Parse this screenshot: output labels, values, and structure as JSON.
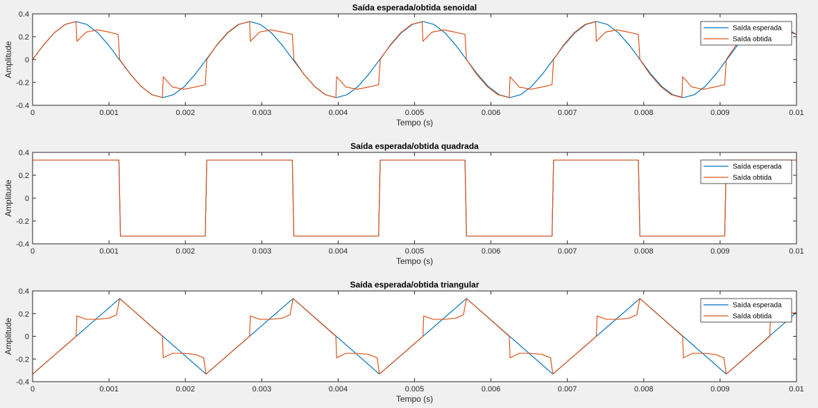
{
  "chart_data": [
    {
      "type": "line",
      "title": "Saída esperada/obtida senoidal",
      "xlabel": "Tempo (s)",
      "ylabel": "Amplitude",
      "xlim": [
        0,
        0.01
      ],
      "ylim": [
        -0.4,
        0.4
      ],
      "xticks": [
        0,
        0.001,
        0.002,
        0.003,
        0.004,
        0.005,
        0.006,
        0.007,
        0.008,
        0.009,
        0.01
      ],
      "yticks": [
        -0.4,
        -0.2,
        0,
        0.2,
        0.4
      ],
      "legend": "top-right",
      "series": [
        {
          "name": "Saída esperada",
          "color": "#0072BD",
          "x": [
            0,
            0.000142,
            0.000284,
            0.000426,
            0.000568,
            0.00071,
            0.000852,
            0.000994,
            0.001136,
            0.001278,
            0.00142,
            0.001562,
            0.001704,
            0.001846,
            0.001988,
            0.00213,
            0.002272,
            0.002414,
            0.002556,
            0.002698,
            0.00284,
            0.002982,
            0.003124,
            0.003266,
            0.003408,
            0.00355,
            0.003692,
            0.003834,
            0.003976,
            0.004118,
            0.00426,
            0.004402,
            0.004544,
            0.004686,
            0.004828,
            0.00497,
            0.005112,
            0.005254,
            0.005396,
            0.005538,
            0.00568,
            0.005822,
            0.005964,
            0.006106,
            0.006248,
            0.00639,
            0.006532,
            0.006674,
            0.006816,
            0.006958,
            0.0071,
            0.007242,
            0.007384,
            0.007526,
            0.007668,
            0.00781,
            0.007952,
            0.008094,
            0.008236,
            0.008378,
            0.00852,
            0.008662,
            0.008804,
            0.008946,
            0.009088,
            0.00923,
            0.009372,
            0.009514,
            0.009656,
            0.009798,
            0.00994,
            0.01
          ],
          "y": [
            0,
            0.127,
            0.235,
            0.307,
            0.333,
            0.307,
            0.235,
            0.127,
            0,
            -0.127,
            -0.235,
            -0.307,
            -0.333,
            -0.307,
            -0.235,
            -0.127,
            0,
            0.127,
            0.235,
            0.307,
            0.333,
            0.307,
            0.235,
            0.127,
            0,
            -0.127,
            -0.235,
            -0.307,
            -0.333,
            -0.307,
            -0.235,
            -0.127,
            0,
            0.127,
            0.235,
            0.307,
            0.333,
            0.307,
            0.235,
            0.127,
            0,
            -0.127,
            -0.235,
            -0.307,
            -0.333,
            -0.307,
            -0.235,
            -0.127,
            0,
            0.127,
            0.235,
            0.307,
            0.333,
            0.307,
            0.235,
            0.127,
            0,
            -0.127,
            -0.235,
            -0.307,
            -0.333,
            -0.307,
            -0.235,
            -0.127,
            0,
            0.127,
            0.235,
            0.307,
            0.333,
            0.307,
            0.235,
            0.22
          ]
        },
        {
          "name": "Saída obtida",
          "color": "#D95319",
          "x": [
            0,
            0.000142,
            0.000284,
            0.000426,
            0.000568,
            0.00058,
            0.0007,
            0.00085,
            0.001,
            0.00112,
            0.00114,
            0.00128,
            0.00142,
            0.00156,
            0.0017,
            0.00171,
            0.00183,
            0.00198,
            0.00213,
            0.00226,
            0.00228,
            0.00241,
            0.00255,
            0.00269,
            0.00284,
            0.00285,
            0.00297,
            0.00312,
            0.00327,
            0.0034,
            0.00342,
            0.00355,
            0.00369,
            0.00383,
            0.00397,
            0.00398,
            0.0041,
            0.00425,
            0.0044,
            0.00453,
            0.00455,
            0.00468,
            0.00482,
            0.00496,
            0.0051,
            0.00511,
            0.00523,
            0.00538,
            0.00553,
            0.00566,
            0.00568,
            0.00581,
            0.00595,
            0.00609,
            0.00624,
            0.00625,
            0.00637,
            0.00652,
            0.00667,
            0.0068,
            0.00682,
            0.00695,
            0.00709,
            0.00723,
            0.00737,
            0.00738,
            0.0075,
            0.00765,
            0.0078,
            0.00793,
            0.00795,
            0.00808,
            0.00822,
            0.00836,
            0.0085,
            0.00851,
            0.00863,
            0.00878,
            0.00893,
            0.00906,
            0.00908,
            0.00921,
            0.00935,
            0.00949,
            0.00963,
            0.00977,
            0.0099,
            0.01
          ],
          "y": [
            0,
            0.127,
            0.235,
            0.307,
            0.333,
            0.16,
            0.24,
            0.26,
            0.24,
            0.22,
            0,
            -0.127,
            -0.235,
            -0.307,
            -0.333,
            -0.15,
            -0.24,
            -0.26,
            -0.24,
            -0.22,
            0,
            0.127,
            0.235,
            0.307,
            0.333,
            0.16,
            0.24,
            0.26,
            0.24,
            0.22,
            0,
            -0.127,
            -0.235,
            -0.307,
            -0.333,
            -0.15,
            -0.24,
            -0.26,
            -0.24,
            -0.22,
            0,
            0.127,
            0.235,
            0.307,
            0.333,
            0.16,
            0.24,
            0.26,
            0.24,
            0.22,
            0,
            -0.127,
            -0.235,
            -0.307,
            -0.333,
            -0.15,
            -0.24,
            -0.26,
            -0.24,
            -0.22,
            0,
            0.127,
            0.235,
            0.307,
            0.333,
            0.16,
            0.24,
            0.26,
            0.24,
            0.22,
            0,
            -0.127,
            -0.235,
            -0.307,
            -0.333,
            -0.15,
            -0.24,
            -0.26,
            -0.24,
            -0.22,
            0,
            0.127,
            0.235,
            0.307,
            0.333,
            0.3,
            0.26,
            0.22
          ]
        }
      ]
    },
    {
      "type": "line",
      "title": "Saída esperada/obtida quadrada",
      "xlabel": "Tempo (s)",
      "ylabel": "Amplitude",
      "xlim": [
        0,
        0.01
      ],
      "ylim": [
        -0.4,
        0.4
      ],
      "xticks": [
        0,
        0.001,
        0.002,
        0.003,
        0.004,
        0.005,
        0.006,
        0.007,
        0.008,
        0.009,
        0.01
      ],
      "yticks": [
        -0.4,
        -0.2,
        0,
        0.2,
        0.4
      ],
      "legend": "top-right",
      "series": [
        {
          "name": "Saída esperada",
          "color": "#0072BD",
          "x": [
            0,
            0.00113,
            0.00115,
            0.00226,
            0.00228,
            0.0034,
            0.00342,
            0.00453,
            0.00455,
            0.00566,
            0.00568,
            0.0068,
            0.00682,
            0.00793,
            0.00795,
            0.00906,
            0.00908,
            0.01
          ],
          "y": [
            0.333,
            0.333,
            -0.333,
            -0.333,
            0.333,
            0.333,
            -0.333,
            -0.333,
            0.333,
            0.333,
            -0.333,
            -0.333,
            0.333,
            0.333,
            -0.333,
            -0.333,
            0.333,
            0.333
          ]
        },
        {
          "name": "Saída obtida",
          "color": "#D95319",
          "x": [
            0,
            0.00113,
            0.00115,
            0.00226,
            0.00228,
            0.0034,
            0.00342,
            0.00453,
            0.00455,
            0.00566,
            0.00568,
            0.0068,
            0.00682,
            0.00793,
            0.00795,
            0.00906,
            0.00908,
            0.01
          ],
          "y": [
            0.333,
            0.333,
            -0.333,
            -0.333,
            0.333,
            0.333,
            -0.333,
            -0.333,
            0.333,
            0.333,
            -0.333,
            -0.333,
            0.333,
            0.333,
            -0.333,
            -0.333,
            0.333,
            0.333
          ]
        }
      ]
    },
    {
      "type": "line",
      "title": "Saída esperada/obtida triangular",
      "xlabel": "Tempo (s)",
      "ylabel": "Amplitude",
      "xlim": [
        0,
        0.01
      ],
      "ylim": [
        -0.4,
        0.4
      ],
      "xticks": [
        0,
        0.001,
        0.002,
        0.003,
        0.004,
        0.005,
        0.006,
        0.007,
        0.008,
        0.009,
        0.01
      ],
      "yticks": [
        -0.4,
        -0.2,
        0,
        0.2,
        0.4
      ],
      "legend": "top-right",
      "series": [
        {
          "name": "Saída esperada",
          "color": "#0072BD",
          "x": [
            0,
            0.00114,
            0.00227,
            0.00341,
            0.00454,
            0.00568,
            0.00681,
            0.00795,
            0.00908,
            0.01
          ],
          "y": [
            -0.333,
            0.333,
            -0.333,
            0.333,
            -0.333,
            0.333,
            -0.333,
            0.333,
            -0.333,
            0.21
          ]
        },
        {
          "name": "Saída obtida",
          "color": "#D95319",
          "x": [
            0,
            0.00057,
            0.00058,
            0.0007,
            0.00085,
            0.001,
            0.0011,
            0.00114,
            0.0017,
            0.00171,
            0.00183,
            0.00198,
            0.00213,
            0.00224,
            0.00227,
            0.00284,
            0.00285,
            0.00297,
            0.00312,
            0.00327,
            0.00337,
            0.00341,
            0.00397,
            0.00398,
            0.0041,
            0.00425,
            0.0044,
            0.00451,
            0.00454,
            0.00511,
            0.00512,
            0.00524,
            0.00539,
            0.00554,
            0.00564,
            0.00568,
            0.00624,
            0.00625,
            0.00637,
            0.00652,
            0.00667,
            0.00678,
            0.00681,
            0.00738,
            0.00739,
            0.00751,
            0.00766,
            0.00781,
            0.00791,
            0.00795,
            0.00851,
            0.00852,
            0.00864,
            0.00879,
            0.00894,
            0.00905,
            0.00908,
            0.00965,
            0.00966,
            0.0098,
            0.01
          ],
          "y": [
            -0.333,
            0,
            0.18,
            0.15,
            0.15,
            0.16,
            0.19,
            0.333,
            0,
            -0.19,
            -0.15,
            -0.15,
            -0.16,
            -0.19,
            -0.333,
            0,
            0.18,
            0.15,
            0.15,
            0.16,
            0.19,
            0.333,
            0,
            -0.19,
            -0.15,
            -0.15,
            -0.16,
            -0.19,
            -0.333,
            0,
            0.18,
            0.15,
            0.15,
            0.16,
            0.19,
            0.333,
            0,
            -0.19,
            -0.15,
            -0.15,
            -0.16,
            -0.19,
            -0.333,
            0,
            0.18,
            0.15,
            0.15,
            0.16,
            0.19,
            0.333,
            0,
            -0.19,
            -0.15,
            -0.15,
            -0.16,
            -0.19,
            -0.333,
            0,
            0.18,
            0.19,
            0.21
          ]
        }
      ]
    }
  ]
}
